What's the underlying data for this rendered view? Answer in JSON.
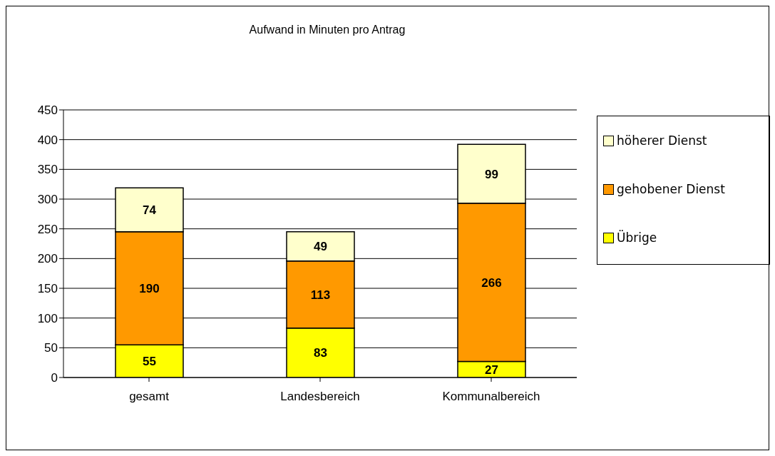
{
  "chart_data": {
    "type": "bar",
    "title": "Aufwand in Minuten pro Antrag",
    "categories": [
      "gesamt",
      "Landesbereich",
      "Kommunalbereich"
    ],
    "stacked": true,
    "series": [
      {
        "name": "Übrige",
        "color": "#ffff00",
        "values": [
          55,
          83,
          27
        ]
      },
      {
        "name": "gehobener Dienst",
        "color": "#ff9900",
        "values": [
          190,
          113,
          266
        ]
      },
      {
        "name": "höherer Dienst",
        "color": "#ffffcc",
        "values": [
          74,
          49,
          99
        ]
      }
    ],
    "ylim": [
      0,
      450
    ],
    "yticks": [
      0,
      50,
      100,
      150,
      200,
      250,
      300,
      350,
      400,
      450
    ],
    "grid": "y",
    "legend": "right",
    "data_labels": true
  }
}
